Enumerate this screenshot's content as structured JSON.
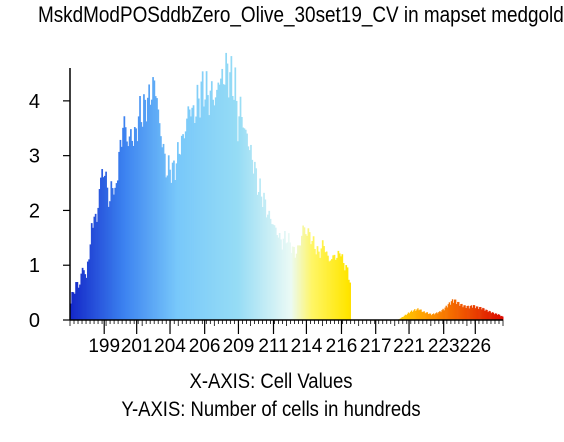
{
  "chart_data": {
    "type": "bar",
    "title": "MskdModPOSddbZero_Olive_30set19_CV in mapset medgold",
    "xlabel": "X-AXIS: Cell Values",
    "ylabel": "Y-AXIS: Number of cells in hundreds",
    "x_tick_labels": [
      "199",
      "201",
      "204",
      "206",
      "209",
      "211",
      "214",
      "216",
      "217",
      "221",
      "223",
      "226"
    ],
    "x_tick_fractions": [
      0.079,
      0.154,
      0.231,
      0.311,
      0.389,
      0.47,
      0.546,
      0.627,
      0.706,
      0.783,
      0.863,
      0.936
    ],
    "y_ticks": [
      0,
      1,
      2,
      3,
      4
    ],
    "ylim": [
      0,
      4.6
    ],
    "grid": false,
    "legend": "none",
    "bin_count": 215,
    "profile": [
      [
        0,
        0.3
      ],
      [
        1,
        0.5
      ],
      [
        3,
        0.5
      ],
      [
        4,
        0.7
      ],
      [
        6,
        0.6
      ],
      [
        8,
        0.8
      ],
      [
        10,
        1.0
      ],
      [
        12,
        0.7
      ],
      [
        13,
        1.1
      ],
      [
        15,
        1.3
      ],
      [
        16,
        1.7
      ],
      [
        18,
        1.9
      ],
      [
        20,
        1.8
      ],
      [
        22,
        2.4
      ],
      [
        24,
        2.7
      ],
      [
        26,
        2.7
      ],
      [
        28,
        2.4
      ],
      [
        30,
        2.1
      ],
      [
        32,
        2.6
      ],
      [
        34,
        2.2
      ],
      [
        36,
        2.8
      ],
      [
        38,
        3.1
      ],
      [
        40,
        3.6
      ],
      [
        42,
        3.5
      ],
      [
        44,
        3.2
      ],
      [
        46,
        3.4
      ],
      [
        48,
        3.3
      ],
      [
        50,
        3.4
      ],
      [
        52,
        3.7
      ],
      [
        54,
        3.8
      ],
      [
        56,
        3.8
      ],
      [
        58,
        4.0
      ],
      [
        60,
        4.0
      ],
      [
        62,
        4.2
      ],
      [
        64,
        4.3
      ],
      [
        66,
        4.1
      ],
      [
        68,
        3.5
      ],
      [
        70,
        3.3
      ],
      [
        72,
        2.9
      ],
      [
        74,
        2.7
      ],
      [
        76,
        2.8
      ],
      [
        78,
        2.7
      ],
      [
        80,
        2.8
      ],
      [
        82,
        3.0
      ],
      [
        84,
        3.2
      ],
      [
        86,
        3.3
      ],
      [
        88,
        3.5
      ],
      [
        90,
        3.8
      ],
      [
        92,
        3.9
      ],
      [
        94,
        3.7
      ],
      [
        96,
        3.9
      ],
      [
        98,
        4.0
      ],
      [
        100,
        4.2
      ],
      [
        102,
        4.2
      ],
      [
        104,
        4.2
      ],
      [
        106,
        4.0
      ],
      [
        108,
        4.2
      ],
      [
        110,
        4.0
      ],
      [
        112,
        4.1
      ],
      [
        114,
        4.5
      ],
      [
        116,
        4.3
      ],
      [
        118,
        4.6
      ],
      [
        120,
        4.5
      ],
      [
        122,
        4.5
      ],
      [
        124,
        4.3
      ],
      [
        126,
        4.3
      ],
      [
        128,
        3.5
      ],
      [
        130,
        3.9
      ],
      [
        132,
        3.6
      ],
      [
        134,
        3.4
      ],
      [
        136,
        3.3
      ],
      [
        138,
        3.0
      ],
      [
        140,
        2.9
      ],
      [
        142,
        2.6
      ],
      [
        144,
        2.4
      ],
      [
        146,
        2.3
      ],
      [
        148,
        2.2
      ],
      [
        150,
        2.0
      ],
      [
        152,
        1.9
      ],
      [
        154,
        1.8
      ],
      [
        156,
        1.7
      ],
      [
        158,
        1.6
      ],
      [
        160,
        1.5
      ],
      [
        162,
        1.4
      ],
      [
        164,
        1.5
      ],
      [
        166,
        1.5
      ],
      [
        168,
        1.4
      ],
      [
        170,
        1.3
      ],
      [
        172,
        1.2
      ],
      [
        174,
        1.3
      ],
      [
        176,
        1.4
      ],
      [
        178,
        1.7
      ],
      [
        180,
        1.6
      ],
      [
        182,
        1.6
      ],
      [
        184,
        1.5
      ],
      [
        186,
        1.4
      ],
      [
        188,
        1.3
      ],
      [
        190,
        1.2
      ],
      [
        192,
        1.3
      ],
      [
        194,
        1.4
      ],
      [
        196,
        1.2
      ],
      [
        198,
        1.1
      ],
      [
        200,
        1.1
      ],
      [
        202,
        1.2
      ],
      [
        204,
        1.1
      ],
      [
        206,
        1.3
      ],
      [
        208,
        1.1
      ],
      [
        210,
        1.0
      ],
      [
        212,
        0.9
      ],
      [
        214,
        0.7
      ]
    ],
    "tail_profile": [
      [
        0,
        0.0
      ],
      [
        4,
        0.05
      ],
      [
        8,
        0.1
      ],
      [
        12,
        0.15
      ],
      [
        16,
        0.18
      ],
      [
        20,
        0.2
      ],
      [
        24,
        0.15
      ],
      [
        28,
        0.13
      ],
      [
        32,
        0.1
      ],
      [
        36,
        0.12
      ],
      [
        40,
        0.15
      ],
      [
        44,
        0.2
      ],
      [
        48,
        0.28
      ],
      [
        52,
        0.35
      ],
      [
        54,
        0.36
      ],
      [
        56,
        0.33
      ],
      [
        60,
        0.28
      ],
      [
        64,
        0.25
      ],
      [
        68,
        0.24
      ],
      [
        72,
        0.26
      ],
      [
        76,
        0.23
      ],
      [
        80,
        0.22
      ],
      [
        84,
        0.18
      ],
      [
        88,
        0.15
      ],
      [
        92,
        0.12
      ],
      [
        96,
        0.1
      ],
      [
        100,
        0.06
      ]
    ]
  }
}
